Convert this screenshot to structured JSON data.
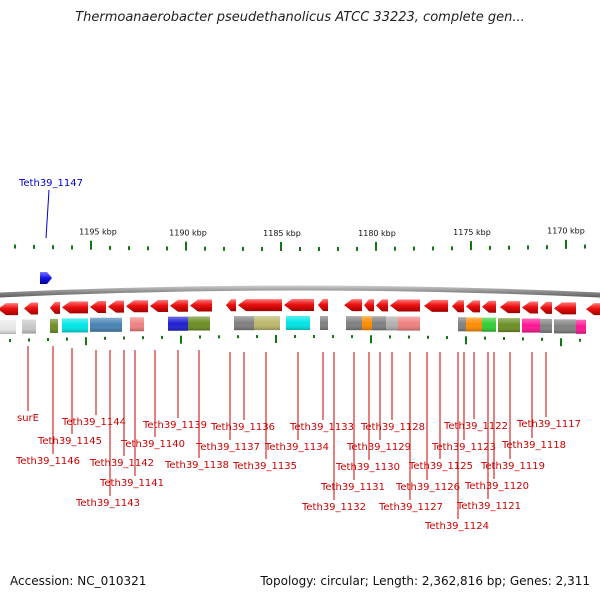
{
  "title": "Thermoanaerobacter pseudethanolicus ATCC 33223, complete gen...",
  "footer": {
    "accession": "Accession: NC_010321",
    "summary": "Topology: circular; Length: 2,362,816 bp; Genes: 2,311"
  },
  "colors": {
    "forward_gene": "#1414e6",
    "reverse_gene": "#ee1111",
    "backbone": "#8c8c8c",
    "tick": "#117711",
    "gene_label": "#cc0000",
    "highlight_label": "#0000cc"
  },
  "highlight_gene": {
    "name": "Teth39_1147",
    "strand": "forward"
  },
  "scale_labels": [
    "1195 kbp",
    "1190 kbp",
    "1185 kbp",
    "1180 kbp",
    "1175 kbp",
    "1170 kbp"
  ],
  "gene_labels": [
    "surE",
    "Teth39_1146",
    "Teth39_1145",
    "Teth39_1144",
    "Teth39_1143",
    "Teth39_1142",
    "Teth39_1141",
    "Teth39_1140",
    "Teth39_1139",
    "Teth39_1138",
    "Teth39_1137",
    "Teth39_1136",
    "Teth39_1135",
    "Teth39_1134",
    "Teth39_1133",
    "Teth39_1132",
    "Teth39_1131",
    "Teth39_1130",
    "Teth39_1129",
    "Teth39_1128",
    "Teth39_1127",
    "Teth39_1126",
    "Teth39_1125",
    "Teth39_1124",
    "Teth39_1123",
    "Teth39_1122",
    "Teth39_1121",
    "Teth39_1120",
    "Teth39_1119",
    "Teth39_1118",
    "Teth39_1117"
  ],
  "cog_colors": [
    "#e8e8e8",
    "#00e6e6",
    "#c8c8c8",
    "#6b8e23",
    "#4682b4",
    "#f08080",
    "#1e1ed2",
    "#6b8e23",
    "#808080",
    "#bdb76b",
    "#00e6e6",
    "#808080",
    "#ff8c00",
    "#b0b0b0",
    "#f08080",
    "#ff8c00",
    "#32cd32",
    "#6b8e23",
    "#ff1493",
    "#808080",
    "#ff1493"
  ]
}
